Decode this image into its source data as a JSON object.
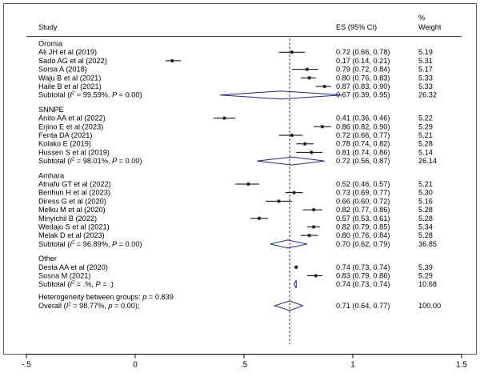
{
  "chart_data": {
    "type": "forest",
    "columns": {
      "study": "Study",
      "es": "ES (95% CI)",
      "weight_top": "%",
      "weight_bottom": "Weight"
    },
    "groups": [
      {
        "name": "Oromia",
        "studies": [
          {
            "label": "Ali JH et al (2019)",
            "es": 0.72,
            "lo": 0.66,
            "hi": 0.78,
            "es_text": "0.72 (0.66, 0.78)",
            "weight": "5.19"
          },
          {
            "label": "Sado AG et al (2022)",
            "es": 0.17,
            "lo": 0.14,
            "hi": 0.21,
            "es_text": "0.17 (0.14, 0.21)",
            "weight": "5.31"
          },
          {
            "label": "Sorsa A (2018)",
            "es": 0.79,
            "lo": 0.72,
            "hi": 0.84,
            "es_text": "0.79 (0.72, 0.84)",
            "weight": "5.17"
          },
          {
            "label": "Waju B et al (2021)",
            "es": 0.8,
            "lo": 0.76,
            "hi": 0.83,
            "es_text": "0.80 (0.76, 0.83)",
            "weight": "5.33"
          },
          {
            "label": "Haile B et al (2021)",
            "es": 0.87,
            "lo": 0.83,
            "hi": 0.9,
            "es_text": "0.87 (0.83, 0.90)",
            "weight": "5.33"
          }
        ],
        "subtotal": {
          "label_pre": "Subtotal  (",
          "sq": "2",
          "label_post": " = 99.59%, ",
          "p_pre": "P",
          "p_post": " = 0.00)",
          "es": 0.67,
          "lo": 0.39,
          "hi": 0.95,
          "es_text": "0.67 (0.39, 0.95)",
          "weight": "26.32"
        }
      },
      {
        "name": "SNNPE",
        "studies": [
          {
            "label": "Anito AA et al (2022)",
            "es": 0.41,
            "lo": 0.36,
            "hi": 0.46,
            "es_text": "0.41 (0.36, 0.46)",
            "weight": "5.22"
          },
          {
            "label": "Erjino E et al (2023)",
            "es": 0.86,
            "lo": 0.82,
            "hi": 0.9,
            "es_text": "0.86 (0.82, 0.90)",
            "weight": "5.29"
          },
          {
            "label": "Fenta DA (2021)",
            "es": 0.72,
            "lo": 0.66,
            "hi": 0.77,
            "es_text": "0.72 (0.66, 0.77)",
            "weight": "5.21"
          },
          {
            "label": "Kolako E (2019)",
            "es": 0.78,
            "lo": 0.74,
            "hi": 0.82,
            "es_text": "0.78 (0.74, 0.82)",
            "weight": "5.28"
          },
          {
            "label": "Hussen S et al (2019)",
            "es": 0.81,
            "lo": 0.74,
            "hi": 0.86,
            "es_text": "0.81 (0.74, 0.86)",
            "weight": "5.14"
          }
        ],
        "subtotal": {
          "label_pre": "Subtotal  (",
          "sq": "2",
          "label_post": " = 98.01%, ",
          "p_pre": "P",
          "p_post": " = 0.00)",
          "es": 0.72,
          "lo": 0.56,
          "hi": 0.87,
          "es_text": "0.72 (0.56, 0.87)",
          "weight": "26.14"
        }
      },
      {
        "name": "Amhara",
        "studies": [
          {
            "label": "Atnafu GT et al (2022)",
            "es": 0.52,
            "lo": 0.46,
            "hi": 0.57,
            "es_text": "0.52 (0.46, 0.57)",
            "weight": "5.21"
          },
          {
            "label": "Berihun H et al (2023)",
            "es": 0.73,
            "lo": 0.69,
            "hi": 0.77,
            "es_text": "0.73 (0.69, 0.77)",
            "weight": "5.30"
          },
          {
            "label": "Diress G et al (2020)",
            "es": 0.66,
            "lo": 0.6,
            "hi": 0.72,
            "es_text": "0.66 (0.60, 0.72)",
            "weight": "5.16"
          },
          {
            "label": "Melku M et al (2020)",
            "es": 0.82,
            "lo": 0.77,
            "hi": 0.86,
            "es_text": "0.82 (0.77, 0.86)",
            "weight": "5.28"
          },
          {
            "label": "Minyichil B (2022)",
            "es": 0.57,
            "lo": 0.53,
            "hi": 0.61,
            "es_text": "0.57 (0.53, 0.61)",
            "weight": "5.28"
          },
          {
            "label": "Wedajo S et al (2021)",
            "es": 0.82,
            "lo": 0.79,
            "hi": 0.85,
            "es_text": "0.82 (0.79, 0.85)",
            "weight": "5.34"
          },
          {
            "label": "Melak D et al (2023)",
            "es": 0.8,
            "lo": 0.76,
            "hi": 0.84,
            "es_text": "0.80 (0.76, 0.84)",
            "weight": "5.28"
          }
        ],
        "subtotal": {
          "label_pre": "Subtotal  (",
          "sq": "2",
          "label_post": " = 96.89%, ",
          "p_pre": "P",
          "p_post": " = 0.00)",
          "es": 0.7,
          "lo": 0.62,
          "hi": 0.79,
          "es_text": "0.70 (0.62, 0.79)",
          "weight": "36.85"
        }
      },
      {
        "name": "Other",
        "studies": [
          {
            "label": "Desta AA et al (2020)",
            "es": 0.74,
            "lo": 0.73,
            "hi": 0.74,
            "es_text": "0.74 (0.73, 0.74)",
            "weight": "5.39"
          },
          {
            "label": "Sosna M (2021)",
            "es": 0.83,
            "lo": 0.79,
            "hi": 0.86,
            "es_text": "0.83 (0.79, 0.86)",
            "weight": "5.29"
          }
        ],
        "subtotal": {
          "label_pre": "Subtotal  (",
          "sq": "2",
          "label_post": " = .%, ",
          "p_pre": "P",
          "p_post": " = .)",
          "es": 0.74,
          "lo": 0.73,
          "hi": 0.74,
          "es_text": "0.74 (0.73, 0.74)",
          "weight": "10.68"
        }
      }
    ],
    "heterogeneity": {
      "pre": "Heterogeneity between groups: ",
      "p": "p",
      "post": " = 0.839"
    },
    "overall": {
      "label_pre": "Overall  (",
      "sq": "2",
      "label_post": " = 98.77%, ",
      "p_pre": "p",
      "p_post": " = 0.00);",
      "es": 0.71,
      "lo": 0.64,
      "hi": 0.77,
      "es_text": "0.71 (0.64, 0.77)",
      "weight": "100.00"
    },
    "x_ticks": [
      {
        "value": -0.5,
        "label": "-.5"
      },
      {
        "value": 0,
        "label": "0"
      },
      {
        "value": 0.5,
        "label": ".5"
      },
      {
        "value": 1,
        "label": "1"
      },
      {
        "value": 1.5,
        "label": "1.5"
      }
    ],
    "xlim": [
      -0.5,
      1.5
    ],
    "reference_line": 0.71,
    "colors": {
      "diamond": "#1a2a8a",
      "reference": "#8b1a1a",
      "axis": "#000000"
    }
  }
}
